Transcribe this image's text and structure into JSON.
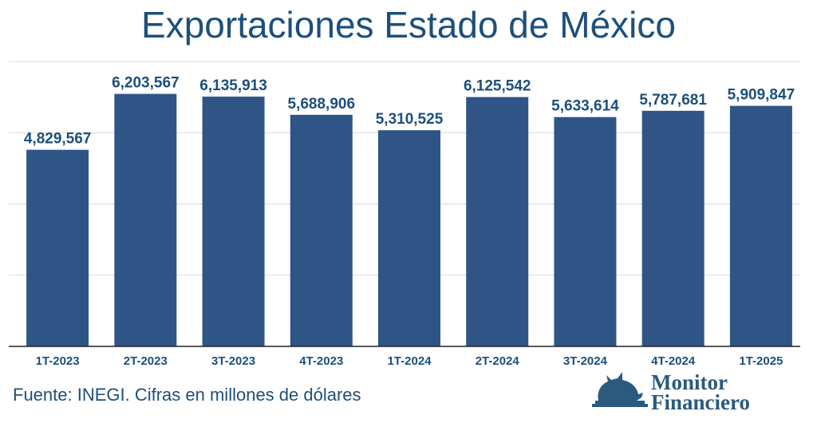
{
  "chart_data": {
    "type": "bar",
    "title": "Exportaciones Estado de México",
    "categories": [
      "1T-2023",
      "2T-2023",
      "3T-2023",
      "4T-2023",
      "1T-2024",
      "2T-2024",
      "3T-2024",
      "4T-2024",
      "1T-2025"
    ],
    "values": [
      4829567,
      6203567,
      6135913,
      5688906,
      5310525,
      6125542,
      5633614,
      5787681,
      5909847
    ],
    "data_labels": [
      "4,829,567",
      "6,203,567",
      "6,135,913",
      "5,688,906",
      "5,310,525",
      "6,125,542",
      "5,633,614",
      "5,787,681",
      "5,909,847"
    ],
    "ylim": [
      0,
      7000000
    ],
    "gridlines": [
      1750000,
      3500000,
      5250000,
      7000000
    ],
    "grid": true,
    "y_tick_labels_shown": false,
    "xlabel": "",
    "ylabel": "",
    "colors": {
      "bar": "#2f5587",
      "label": "#1d4f7c",
      "grid": "#d9d9d9",
      "axis": "#222222"
    }
  },
  "source": "Fuente: INEGI. Cifras en millones de dólares",
  "logo": {
    "line1": "Monitor",
    "line2": "Financiero",
    "color": "#2a5a7e",
    "icon": "bull-icon"
  }
}
